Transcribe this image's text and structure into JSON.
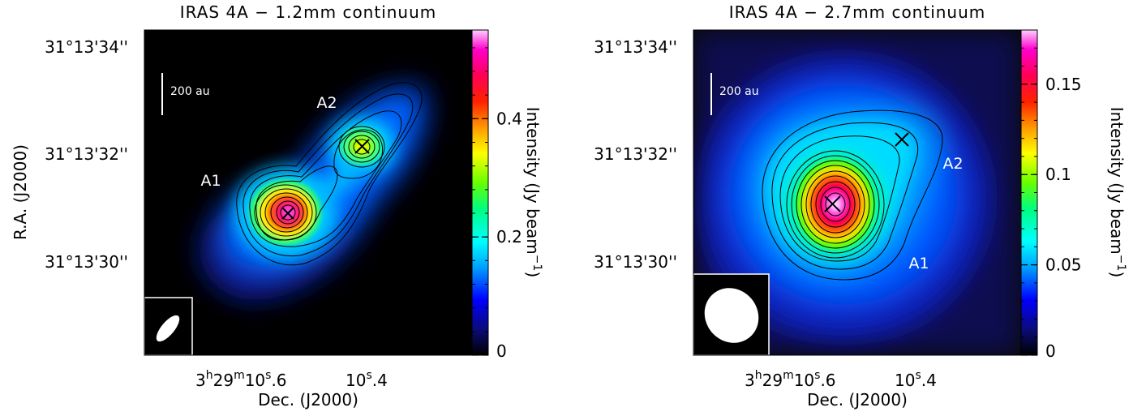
{
  "chart_data": [
    {
      "type": "heatmap",
      "title": "IRAS 4A − 1.2mm continuum",
      "xlabel": "Dec. (J2000)",
      "ylabel": "R.A. (J2000)",
      "x_tick_labels": [
        {
          "main": "3",
          "h": "h",
          "mid": "29",
          "m": "m",
          "sec": "10",
          "s": "s",
          "frac": ".6"
        },
        {
          "main": "",
          "h": "",
          "mid": "",
          "m": "",
          "sec": "10",
          "s": "s",
          "frac": ".4"
        }
      ],
      "y_tick_labels": [
        "31°13'34''",
        "31°13'32''",
        "31°13'30''"
      ],
      "colorbar_label": "Intensity (Jy beam",
      "colorbar_label_exponent": "−1",
      "colorbar_label_close": ")",
      "colorbar_range": [
        0,
        0.55
      ],
      "colorbar_tick_labels": [
        "0",
        "0.2",
        "0.4"
      ],
      "colorbar_tick_values": [
        0,
        0.2,
        0.4
      ],
      "colormap": "rainbow",
      "scale_bar_label": "200 au",
      "sources": [
        {
          "label": "A1",
          "peak": 0.55,
          "marker": "x"
        },
        {
          "label": "A2",
          "peak": 0.32,
          "marker": "x"
        }
      ],
      "beam": {
        "shape": "ellipse",
        "orientation": "tilted"
      },
      "contours": true
    },
    {
      "type": "heatmap",
      "title": "IRAS 4A − 2.7mm continuum",
      "xlabel": "Dec. (J2000)",
      "ylabel": "",
      "x_tick_labels": [
        {
          "main": "3",
          "h": "h",
          "mid": "29",
          "m": "m",
          "sec": "10",
          "s": "s",
          "frac": ".6"
        },
        {
          "main": "",
          "h": "",
          "mid": "",
          "m": "",
          "sec": "10",
          "s": "s",
          "frac": ".4"
        }
      ],
      "y_tick_labels": [
        "31°13'34''",
        "31°13'32''",
        "31°13'30''"
      ],
      "colorbar_label": "Intensity (Jy beam",
      "colorbar_label_exponent": "−1",
      "colorbar_label_close": ")",
      "colorbar_range": [
        0,
        0.18
      ],
      "colorbar_tick_labels": [
        "0",
        "0.05",
        "0.1",
        "0.15"
      ],
      "colorbar_tick_values": [
        0,
        0.05,
        0.1,
        0.15
      ],
      "colormap": "rainbow",
      "scale_bar_label": "200 au",
      "sources": [
        {
          "label": "A1",
          "peak": 0.18,
          "marker": "x"
        },
        {
          "label": "A2",
          "peak": 0.05,
          "marker": "x"
        }
      ],
      "beam": {
        "shape": "ellipse",
        "orientation": "near-circular"
      },
      "contours": true
    }
  ]
}
